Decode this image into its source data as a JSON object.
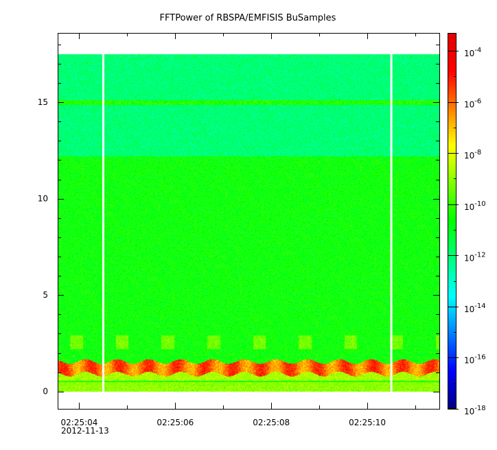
{
  "chart_data": {
    "type": "heatmap",
    "title": "FFTPower of RBSPA/EMFISIS  BuSamples",
    "x_ticks": [
      "02:25:04",
      "02:25:06",
      "02:25:08",
      "02:25:10"
    ],
    "x_tick_values_s": [
      4,
      6,
      8,
      10
    ],
    "x_sublabel": "2012-11-13",
    "xlim_s": [
      3.55,
      11.5
    ],
    "x_minor_step_s": 1,
    "y_ticks": [
      "0",
      "5",
      "10",
      "15"
    ],
    "y_tick_values": [
      0,
      5,
      10,
      15
    ],
    "ylim": [
      -0.9,
      18.6
    ],
    "data_ymax": 17.5,
    "colorbar": {
      "scale": "log",
      "range_exp": [
        -18,
        -3.3
      ],
      "tick_exponents": [
        -4,
        -6,
        -8,
        -10,
        -12,
        -14,
        -16,
        -18
      ],
      "tick_labels": [
        "10",
        "10",
        "10",
        "10",
        "10",
        "10",
        "10",
        "10"
      ],
      "tick_superscripts": [
        "-4",
        "-6",
        "-8",
        "-10",
        "-12",
        "-14",
        "-16",
        "-18"
      ],
      "colors": [
        "#00007f",
        "#0000ff",
        "#007fff",
        "#00ffff",
        "#00ff7f",
        "#00ff00",
        "#7fff00",
        "#ffff00",
        "#ff7f00",
        "#ff0000",
        "#e00000"
      ]
    },
    "gaps_s": [
      4.5,
      10.5
    ],
    "features": [
      {
        "name": "background",
        "y_range": [
          0,
          12.2
        ],
        "log_power": -10.6
      },
      {
        "name": "upper-band",
        "y_range": [
          12.2,
          17.5
        ],
        "log_power": -12.0
      },
      {
        "name": "line",
        "y": 15.0,
        "log_power": -10.3
      },
      {
        "name": "strong-band",
        "y_range": [
          0.9,
          1.55
        ],
        "log_power": -6.0
      },
      {
        "name": "low-band",
        "y_range": [
          0,
          0.5
        ],
        "log_power": -9.0
      },
      {
        "name": "bursts",
        "y_range": [
          2.2,
          2.9
        ],
        "log_power": -9.3
      }
    ]
  }
}
